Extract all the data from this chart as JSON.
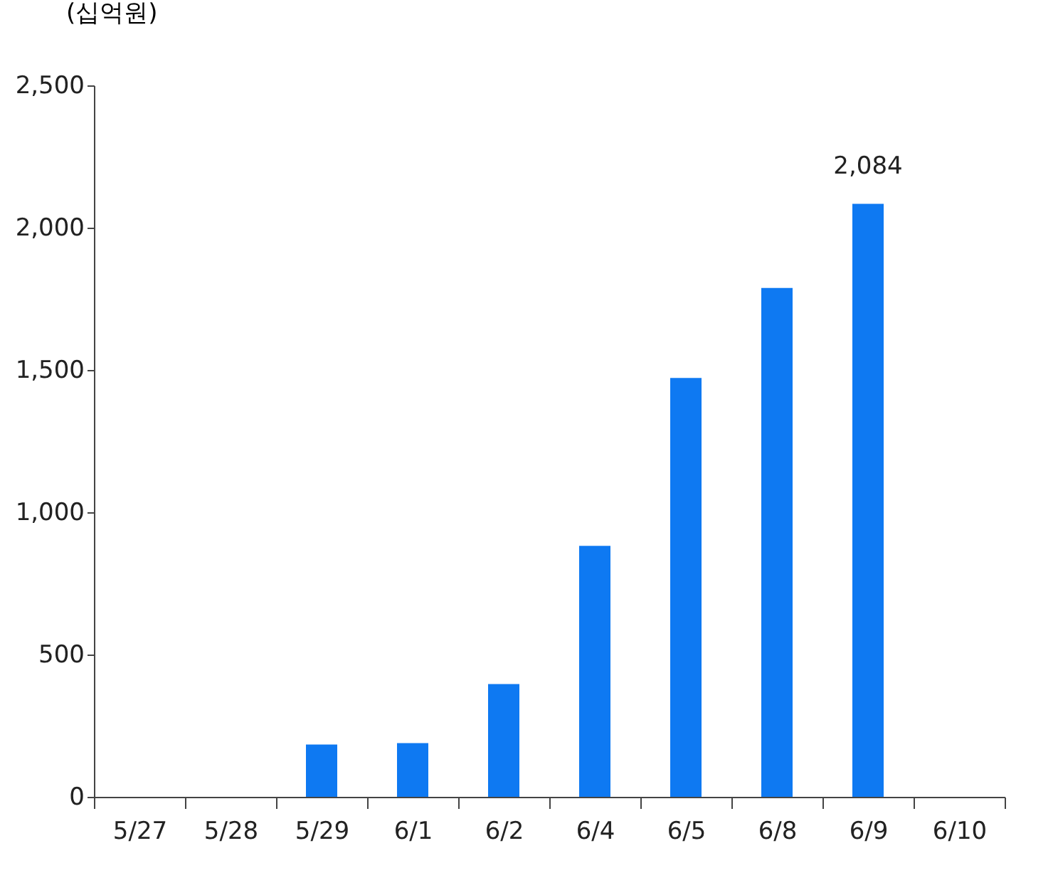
{
  "chart_data": {
    "type": "bar",
    "ylabel": "(십억원)",
    "categories": [
      "5/27",
      "5/28",
      "5/29",
      "6/1",
      "6/2",
      "6/4",
      "6/5",
      "6/8",
      "6/9",
      "6/10"
    ],
    "values": [
      null,
      null,
      184,
      189,
      396,
      882,
      1472,
      1788,
      2084,
      null
    ],
    "value_labels": [
      null,
      null,
      null,
      null,
      null,
      null,
      null,
      null,
      "2,084",
      null
    ],
    "color": "#0e79f2",
    "ylim": [
      0,
      2500
    ],
    "yticks": [
      0,
      500,
      {
        "value": 1000,
        "label": "1,000"
      },
      {
        "value": 1500,
        "label": "1,500"
      },
      {
        "value": 2000,
        "label": "2,000"
      },
      {
        "value": 2500,
        "label": "2,500"
      }
    ],
    "grid": false
  }
}
